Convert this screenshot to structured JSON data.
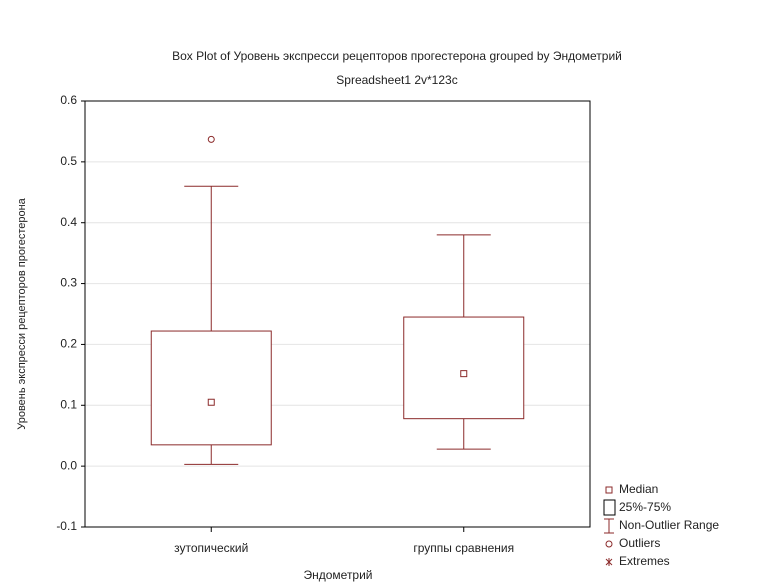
{
  "chart_data": {
    "type": "box",
    "title": "Box Plot of Уровень экспресси рецепторов прогестерона grouped by  Эндометрий",
    "subtitle": "Spreadsheet1 2v*123c",
    "x_label": "Эндометрий",
    "y_label": "Уровень экспресси рецепторов прогестерона",
    "categories": [
      "зутопический",
      "группы сравнения"
    ],
    "boxes": [
      {
        "min": 0.003,
        "q1": 0.035,
        "median": 0.105,
        "q3": 0.222,
        "max": 0.46,
        "outliers": [
          0.537
        ]
      },
      {
        "min": 0.028,
        "q1": 0.078,
        "median": 0.152,
        "q3": 0.245,
        "max": 0.38,
        "outliers": []
      }
    ],
    "color": "#8b2a2a",
    "ylim": [
      -0.1,
      0.6
    ],
    "yticks": [
      -0.1,
      {
        "value": 0,
        "label": "0.0"
      },
      0.1,
      0.2,
      0.3,
      0.4,
      0.5,
      0.6
    ],
    "grid": true,
    "legend": [
      "Median",
      "25%-75%",
      "Non-Outlier Range",
      "Outliers",
      "Extremes"
    ]
  }
}
